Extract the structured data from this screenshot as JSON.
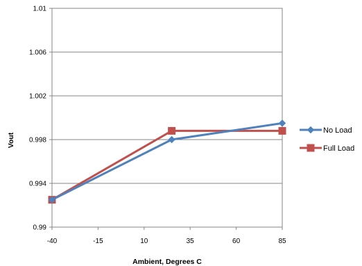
{
  "chart_data": {
    "type": "line",
    "title": "",
    "xlabel": "Ambient, Degrees C",
    "ylabel": "Vout",
    "xlim": [
      -40,
      85
    ],
    "ylim": [
      0.99,
      1.01
    ],
    "x_ticks": [
      "-40",
      "-15",
      "10",
      "35",
      "60",
      "85"
    ],
    "y_ticks": [
      "0.99",
      "0.994",
      "0.998",
      "1.002",
      "1.006",
      "1.01"
    ],
    "grid": "horizontal",
    "legend_position": "right",
    "series": [
      {
        "name": "No Load",
        "color": "#4F81BD",
        "marker": "diamond",
        "x": [
          -40,
          25,
          85
        ],
        "y": [
          0.9925,
          0.998,
          0.9995
        ]
      },
      {
        "name": "Full Load",
        "color": "#C0504D",
        "marker": "square",
        "x": [
          -40,
          25,
          85
        ],
        "y": [
          0.9925,
          0.9988,
          0.9988
        ]
      }
    ]
  }
}
